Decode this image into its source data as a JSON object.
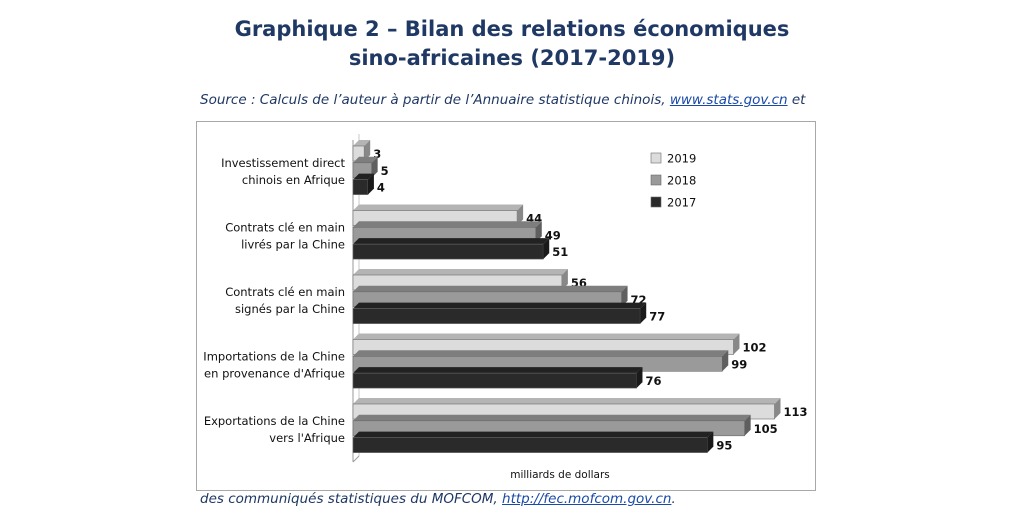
{
  "title_line1": "Graphique 2 – Bilan des relations économiques",
  "title_line2": "sino-africaines (2017-2019)",
  "source": {
    "prefix": "Source :  Calculs de l’auteur à partir de l’Annuaire statistique chinois, ",
    "link": "www.stats.gov.cn",
    "suffix": " et"
  },
  "footer": {
    "prefix": "des communiqués statistiques du MOFCOM, ",
    "link": "http://fec.mofcom.gov.cn",
    "suffix": "."
  },
  "chart_data": {
    "type": "bar",
    "orientation": "horizontal",
    "categories": [
      [
        "Investissement direct",
        "chinois en Afrique"
      ],
      [
        "Contrats clé en main",
        "livrés par la Chine"
      ],
      [
        "Contrats clé en main",
        "signés par la Chine"
      ],
      [
        "Importations de la Chine",
        "en provenance d'Afrique"
      ],
      [
        "Exportations de la Chine",
        "vers l'Afrique"
      ]
    ],
    "series": [
      {
        "name": "2019",
        "color": "#dcdcdc",
        "values": [
          3,
          44,
          56,
          102,
          113
        ]
      },
      {
        "name": "2018",
        "color": "#9a9a9a",
        "values": [
          5,
          49,
          72,
          99,
          105
        ]
      },
      {
        "name": "2017",
        "color": "#2a2a2a",
        "values": [
          4,
          51,
          77,
          76,
          95
        ]
      }
    ],
    "xlabel": "milliards de dollars",
    "xlim": [
      0,
      120
    ],
    "legend_position": "top-right",
    "grid": false
  }
}
